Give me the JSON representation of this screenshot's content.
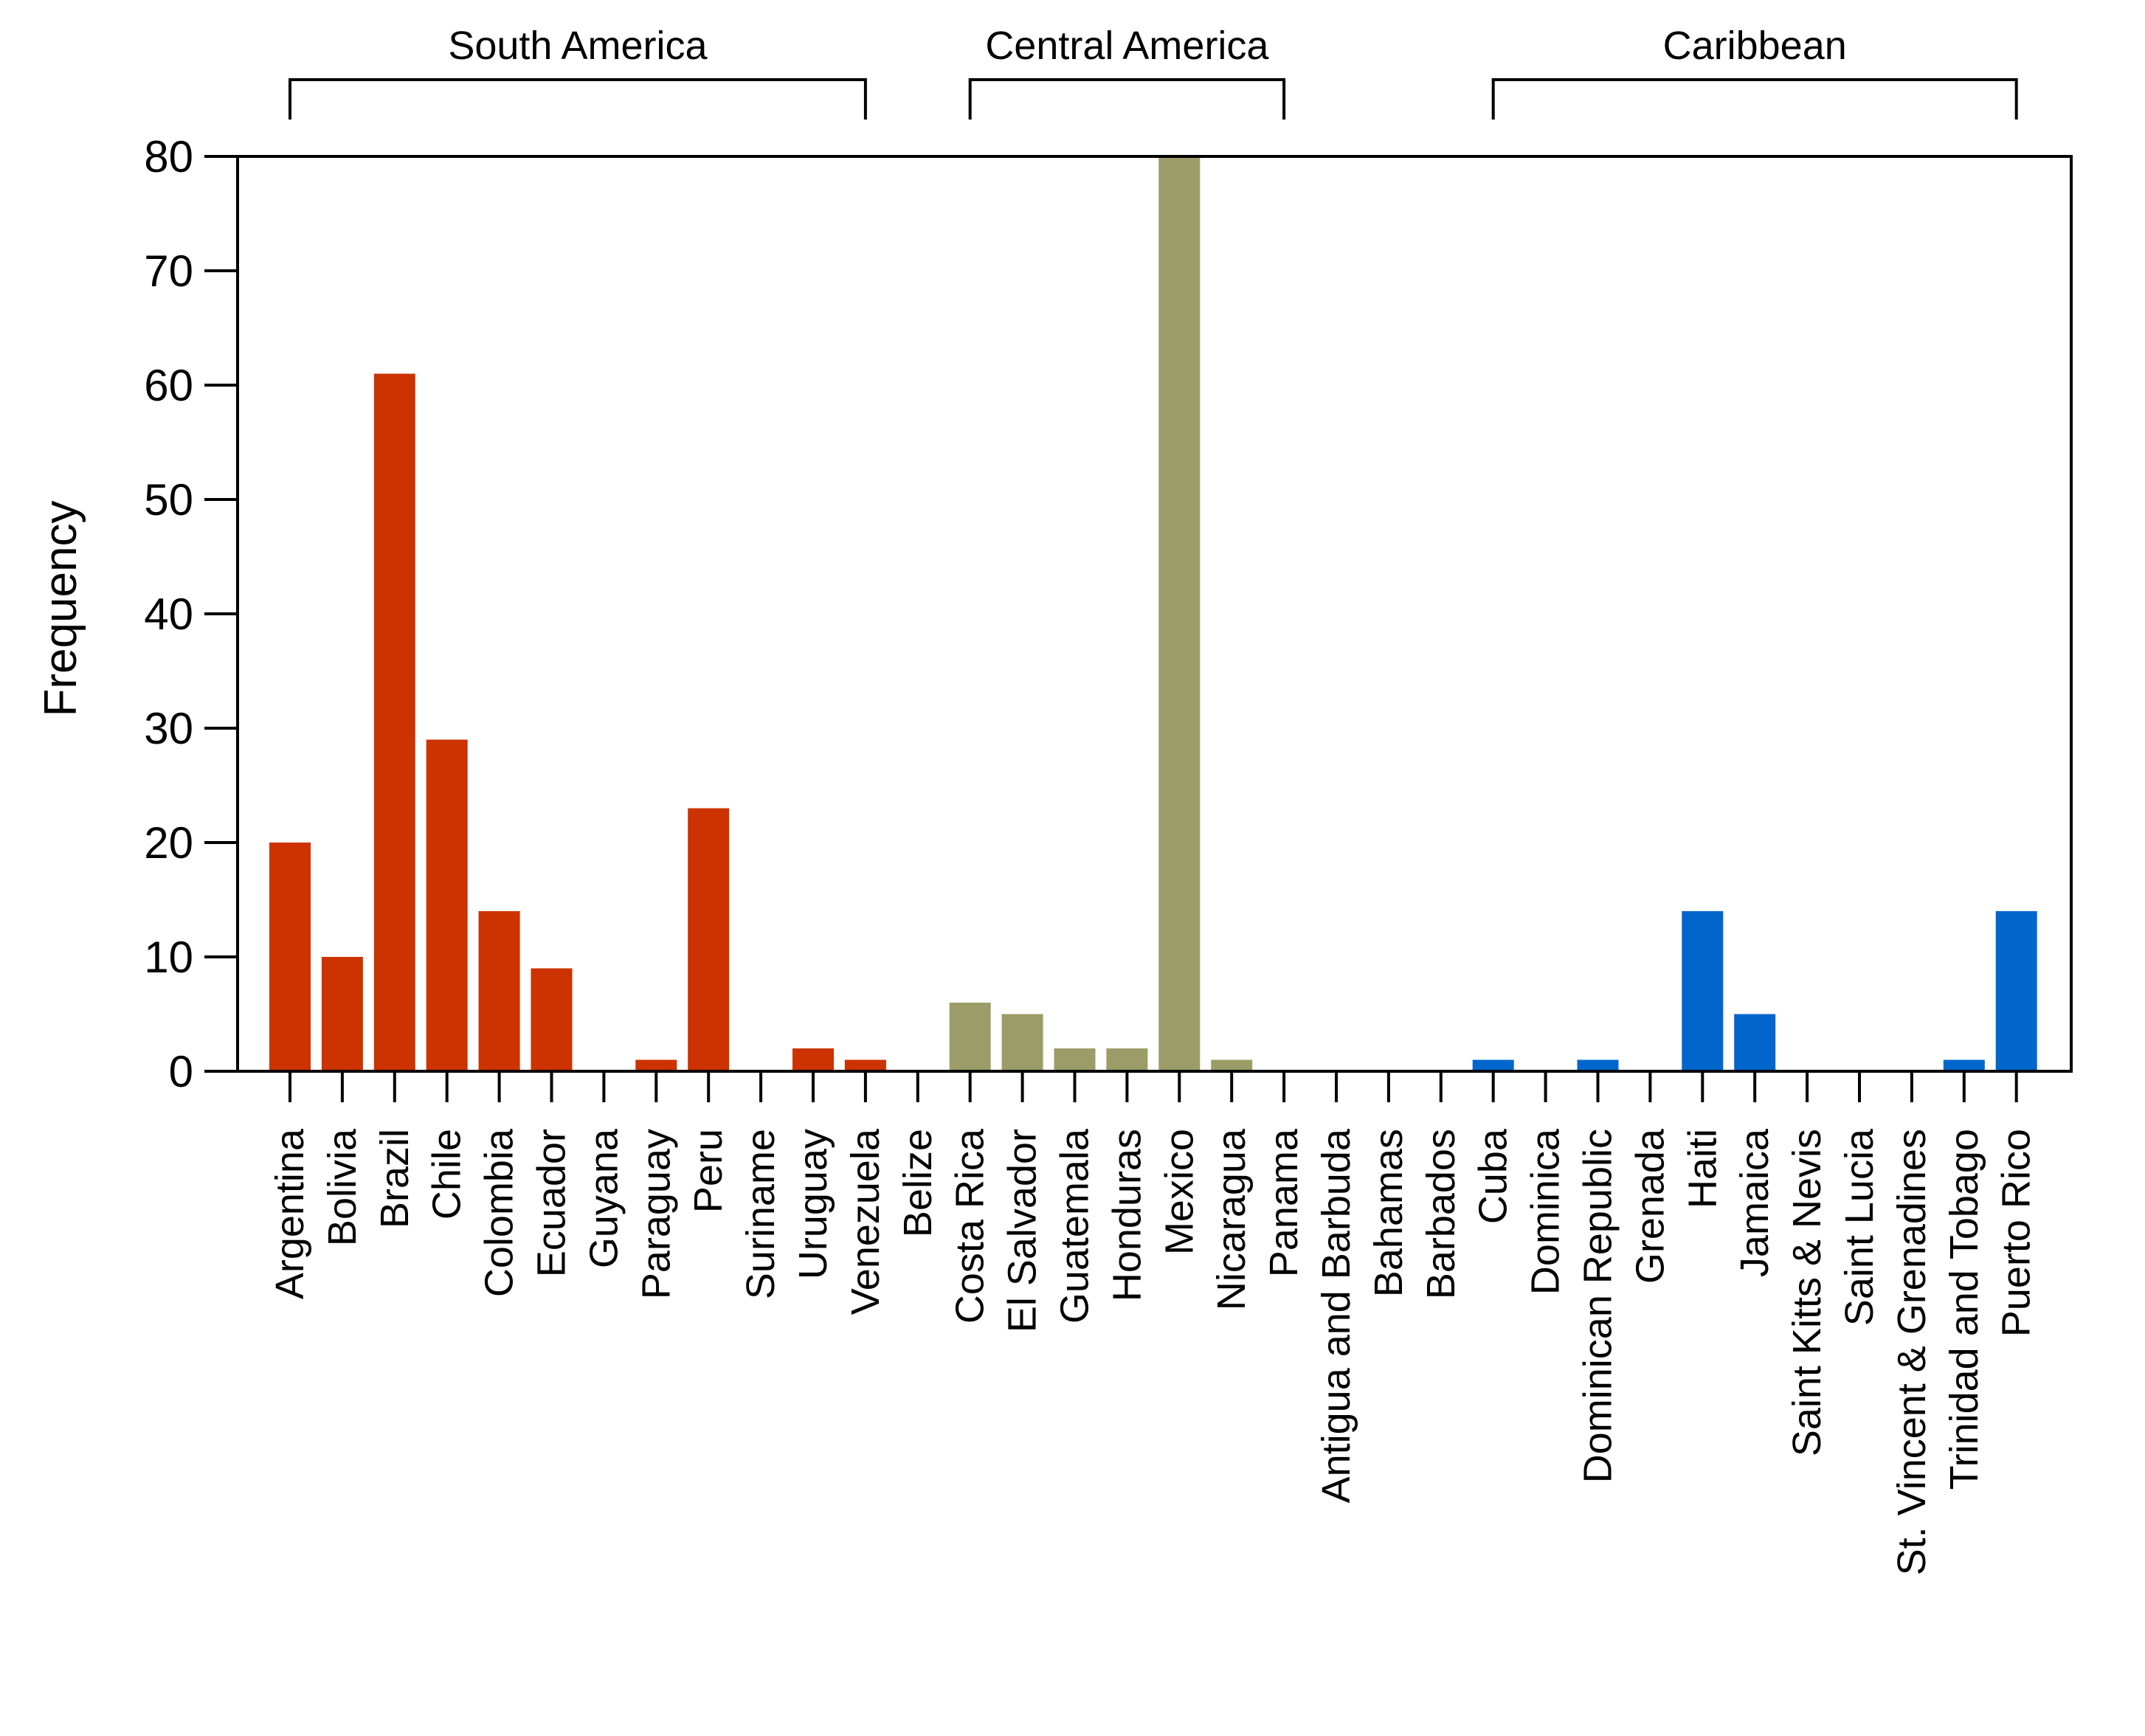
{
  "chart_data": {
    "type": "bar",
    "title": "",
    "xlabel": "",
    "ylabel": "Frequency",
    "ylim": [
      0,
      80
    ],
    "yticks": [
      0,
      10,
      20,
      30,
      40,
      50,
      60,
      70,
      80
    ],
    "grid": false,
    "legend": "none",
    "groups": [
      {
        "name": "South America",
        "color": "#CC3300",
        "bracket_start": "Argentina",
        "bracket_end": "Venezuela"
      },
      {
        "name": "Central America",
        "color": "#9C9C68",
        "bracket_start": "Costa Rica",
        "bracket_end": "Panama"
      },
      {
        "name": "Caribbean",
        "color": "#0066CC",
        "bracket_start": "Cuba",
        "bracket_end": "Puerto Rico"
      }
    ],
    "categories": [
      {
        "label": "Argentina",
        "value": 20,
        "group": "South America"
      },
      {
        "label": "Bolivia",
        "value": 10,
        "group": "South America"
      },
      {
        "label": "Brazil",
        "value": 61,
        "group": "South America"
      },
      {
        "label": "Chile",
        "value": 29,
        "group": "South America"
      },
      {
        "label": "Colombia",
        "value": 14,
        "group": "South America"
      },
      {
        "label": "Ecuador",
        "value": 9,
        "group": "South America"
      },
      {
        "label": "Guyana",
        "value": 0,
        "group": "South America"
      },
      {
        "label": "Paraguay",
        "value": 1,
        "group": "South America"
      },
      {
        "label": "Peru",
        "value": 23,
        "group": "South America"
      },
      {
        "label": "Suriname",
        "value": 0,
        "group": "South America"
      },
      {
        "label": "Uruguay",
        "value": 2,
        "group": "South America"
      },
      {
        "label": "Venezuela",
        "value": 1,
        "group": "South America"
      },
      {
        "label": "Belize",
        "value": 0,
        "group": "Central America"
      },
      {
        "label": "Costa Rica",
        "value": 6,
        "group": "Central America"
      },
      {
        "label": "El Salvador",
        "value": 5,
        "group": "Central America"
      },
      {
        "label": "Guatemala",
        "value": 2,
        "group": "Central America"
      },
      {
        "label": "Honduras",
        "value": 2,
        "group": "Central America"
      },
      {
        "label": "Mexico",
        "value": 80,
        "group": "Central America"
      },
      {
        "label": "Nicaragua",
        "value": 1,
        "group": "Central America"
      },
      {
        "label": "Panama",
        "value": 0,
        "group": "Central America"
      },
      {
        "label": "Antigua and Barbuda",
        "value": 0,
        "group": "Caribbean"
      },
      {
        "label": "Bahamas",
        "value": 0,
        "group": "Caribbean"
      },
      {
        "label": "Barbados",
        "value": 0,
        "group": "Caribbean"
      },
      {
        "label": "Cuba",
        "value": 1,
        "group": "Caribbean"
      },
      {
        "label": "Dominica",
        "value": 0,
        "group": "Caribbean"
      },
      {
        "label": "Dominican Republic",
        "value": 1,
        "group": "Caribbean"
      },
      {
        "label": "Grenada",
        "value": 0,
        "group": "Caribbean"
      },
      {
        "label": "Haiti",
        "value": 14,
        "group": "Caribbean"
      },
      {
        "label": "Jamaica",
        "value": 5,
        "group": "Caribbean"
      },
      {
        "label": "Saint Kitts & Nevis",
        "value": 0,
        "group": "Caribbean"
      },
      {
        "label": "Saint Lucia",
        "value": 0,
        "group": "Caribbean"
      },
      {
        "label": "St. Vincent & Grenadines",
        "value": 0,
        "group": "Caribbean"
      },
      {
        "label": "Trinidad and Tobago",
        "value": 1,
        "group": "Caribbean"
      },
      {
        "label": "Puerto Rico",
        "value": 14,
        "group": "Caribbean"
      }
    ]
  }
}
